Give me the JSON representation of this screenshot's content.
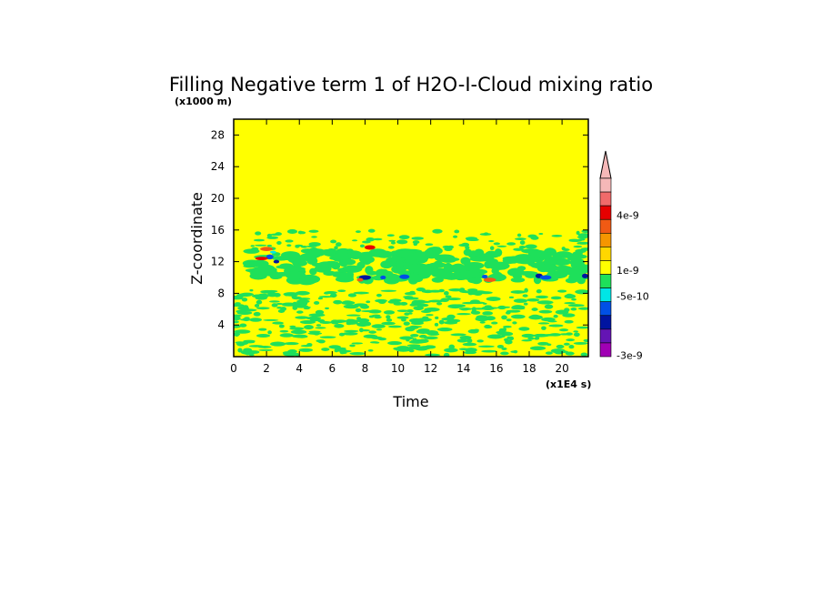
{
  "chart_data": {
    "type": "heatmap",
    "title": "Filling Negative term 1 of H2O-I-Cloud mixing ratio",
    "xlabel": "Time",
    "ylabel": "Z-coordinate",
    "x_unit_note": "(x1E4 s)",
    "y_unit_note": "(x1000 m)",
    "xlim": [
      0,
      21.6
    ],
    "ylim": [
      0,
      30
    ],
    "x_ticks": [
      "0",
      "2",
      "4",
      "6",
      "8",
      "10",
      "12",
      "14",
      "16",
      "18",
      "20"
    ],
    "y_ticks": [
      "4",
      "8",
      "12",
      "16",
      "20",
      "24",
      "28"
    ],
    "colorbar": {
      "labels": [
        "4e-9",
        "1e-9",
        "-5e-10",
        "-3e-9"
      ],
      "colors": [
        "#f5b8b8",
        "#f06a6a",
        "#e60000",
        "#f05a14",
        "#f59600",
        "#ffd700",
        "#ffff00",
        "#1ee05a",
        "#00e6e6",
        "#0050e6",
        "#0014a0",
        "#6414b4",
        "#a000b4"
      ]
    },
    "regions": [
      {
        "name": "background",
        "color": "#ffff00"
      },
      {
        "name": "cloud-layer",
        "x": [
          1,
          21.6
        ],
        "y": [
          9.5,
          13.5
        ],
        "color": "#1ee05a"
      },
      {
        "name": "scattered-lower",
        "x": [
          0,
          21.6
        ],
        "y": [
          0,
          8.5
        ],
        "color": "#1ee05a"
      },
      {
        "name": "scattered-upper",
        "x": [
          1,
          21.6
        ],
        "y": [
          13.5,
          16
        ],
        "color": "#1ee05a"
      }
    ]
  }
}
